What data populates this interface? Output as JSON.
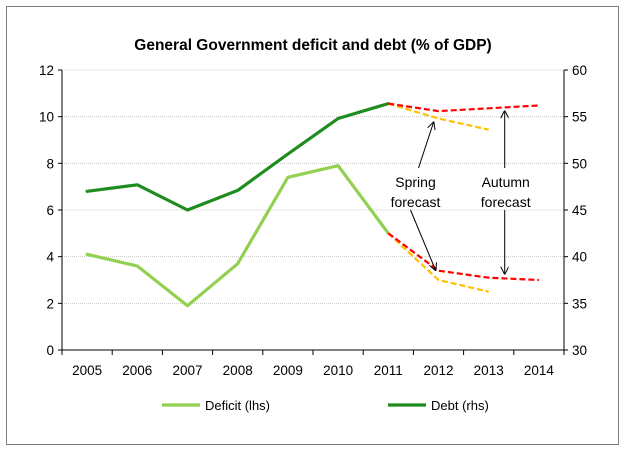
{
  "chart_data": {
    "type": "line",
    "title": "General Government deficit and debt (% of GDP)",
    "categories": [
      "2005",
      "2006",
      "2007",
      "2008",
      "2009",
      "2010",
      "2011",
      "2012",
      "2013",
      "2014"
    ],
    "y_left": {
      "ylim": [
        0,
        12
      ],
      "ticks": [
        "0",
        "2",
        "4",
        "6",
        "8",
        "10",
        "12"
      ]
    },
    "y_right": {
      "ylim": [
        30,
        60
      ],
      "ticks": [
        "30",
        "35",
        "40",
        "45",
        "50",
        "55",
        "60"
      ]
    },
    "grid": true,
    "legend_position": "bottom",
    "series": [
      {
        "name": "Deficit (lhs)",
        "axis": "left",
        "color": "#92d050",
        "style": "solid",
        "values": [
          4.1,
          3.6,
          1.9,
          3.7,
          7.4,
          7.9,
          5.0,
          null,
          null,
          null
        ]
      },
      {
        "name": "Debt (rhs)",
        "axis": "right",
        "color": "#1e8c1e",
        "style": "solid",
        "values": [
          47.0,
          47.7,
          45.0,
          47.1,
          51.0,
          54.8,
          56.4,
          null,
          null,
          null
        ]
      },
      {
        "axis": "left",
        "color": "#ffc000",
        "style": "dashed",
        "group": "spring",
        "values": [
          null,
          null,
          null,
          null,
          null,
          null,
          5.0,
          3.0,
          2.5,
          null
        ]
      },
      {
        "axis": "right",
        "color": "#ffc000",
        "style": "dashed",
        "group": "spring",
        "values": [
          null,
          null,
          null,
          null,
          null,
          null,
          56.4,
          54.8,
          53.6,
          null
        ]
      },
      {
        "axis": "left",
        "color": "#ff0000",
        "style": "dashed",
        "group": "autumn",
        "values": [
          null,
          null,
          null,
          null,
          null,
          null,
          5.0,
          3.4,
          3.1,
          3.0
        ]
      },
      {
        "axis": "right",
        "color": "#ff0000",
        "style": "dashed",
        "group": "autumn",
        "values": [
          null,
          null,
          null,
          null,
          null,
          null,
          56.4,
          55.6,
          55.9,
          56.2
        ]
      }
    ],
    "annotations": [
      {
        "key": "spring",
        "lines": [
          "Spring",
          "forecast"
        ]
      },
      {
        "key": "autumn",
        "lines": [
          "Autumn",
          "forecast"
        ]
      }
    ]
  }
}
